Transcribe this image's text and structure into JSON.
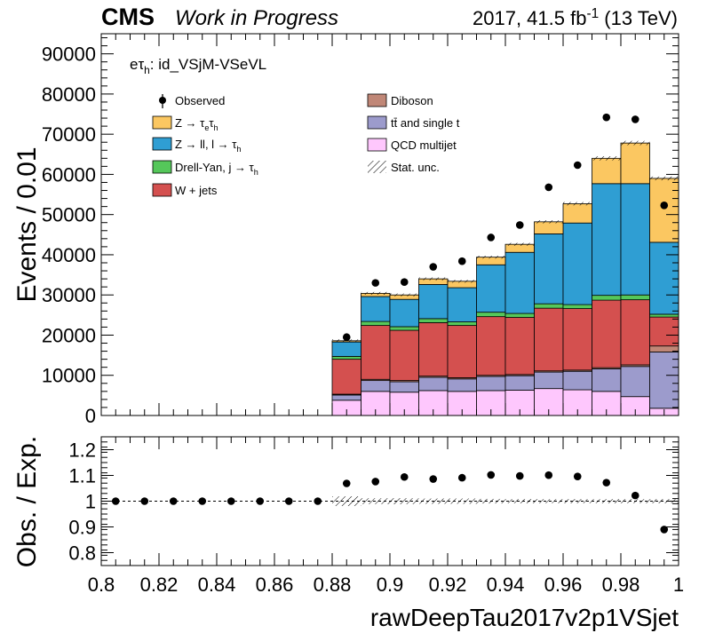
{
  "header": {
    "cms": "CMS",
    "status": "Work in Progress",
    "lumi": {
      "year": "2017, 41.5 fb",
      "sup": "-1",
      "energy": " (13 TeV)"
    }
  },
  "top_panel": {
    "ylabel": "Events / 0.01",
    "ylim": [
      0,
      95000
    ],
    "yticks": [
      0,
      10000,
      20000,
      30000,
      40000,
      50000,
      60000,
      70000,
      80000,
      90000
    ],
    "category": {
      "pre": "eτ",
      "sub": "h",
      "post": ": id_VSjM-VSeVL"
    }
  },
  "ratio_panel": {
    "ylabel": "Obs. / Exp.",
    "ylim": [
      0.75,
      1.25
    ],
    "yticks": [
      0.8,
      0.9,
      1,
      1.1,
      1.2
    ],
    "yticklabels": [
      "0.8",
      "0.9",
      "1",
      "1.1",
      "1.2"
    ]
  },
  "xaxis": {
    "label": "rawDeepTau2017v2p1VSjet",
    "xlim": [
      0.8,
      1.0
    ],
    "ticks": [
      0.8,
      0.82,
      0.84,
      0.86,
      0.88,
      0.9,
      0.92,
      0.94,
      0.96,
      0.98,
      1.0
    ],
    "ticklabels": [
      "0.8",
      "0.82",
      "0.84",
      "0.86",
      "0.88",
      "0.9",
      "0.92",
      "0.94",
      "0.96",
      "0.98",
      "1"
    ]
  },
  "legend": {
    "col1": [
      {
        "key": "observed",
        "label": "Observed"
      },
      {
        "key": "ztt",
        "label": "Z → τ",
        "sub1": "e",
        "mid": "τ",
        "sub2": "h"
      },
      {
        "key": "zll",
        "label": "Z → ll, l → τ",
        "sub1": "h"
      },
      {
        "key": "dy_jet",
        "label": "Drell-Yan, j → τ",
        "sub1": "h"
      },
      {
        "key": "wjets",
        "label": "W + jets"
      }
    ],
    "col2": [
      {
        "key": "diboson",
        "label": "Diboson"
      },
      {
        "key": "ttbar",
        "label": "tt̄ and single t"
      },
      {
        "key": "qcd",
        "label": "QCD multijet"
      },
      {
        "key": "stat",
        "label": "Stat. unc."
      }
    ]
  },
  "colors": {
    "ztt": "#fbc761",
    "zll": "#2f9ed3",
    "dy_jet": "#55c75a",
    "wjets": "#d4504f",
    "diboson": "#c08777",
    "ttbar": "#9c9bcc",
    "qcd": "#fec7fd"
  },
  "chart_data": {
    "type": "bar",
    "stacked": true,
    "x_bin_edges": [
      0.8,
      0.81,
      0.82,
      0.83,
      0.84,
      0.85,
      0.86,
      0.87,
      0.88,
      0.89,
      0.9,
      0.91,
      0.92,
      0.93,
      0.94,
      0.95,
      0.96,
      0.97,
      0.98,
      0.99,
      1.0
    ],
    "stack_order": [
      "qcd",
      "ttbar",
      "diboson",
      "wjets",
      "dy_jet",
      "zll",
      "ztt"
    ],
    "series": [
      {
        "name": "QCD multijet",
        "key": "qcd",
        "values": [
          0,
          0,
          0,
          0,
          0,
          0,
          0,
          0,
          3800,
          6000,
          5800,
          6200,
          6000,
          6200,
          6300,
          6700,
          6400,
          6000,
          4700,
          1800
        ]
      },
      {
        "name": "tt̄ and single t",
        "key": "ttbar",
        "values": [
          0,
          0,
          0,
          0,
          0,
          0,
          0,
          0,
          1300,
          2700,
          2600,
          3300,
          3100,
          3500,
          3600,
          4100,
          4600,
          5600,
          7500,
          14000
        ]
      },
      {
        "name": "Diboson",
        "key": "diboson",
        "values": [
          0,
          0,
          0,
          0,
          0,
          0,
          0,
          0,
          200,
          300,
          300,
          300,
          300,
          300,
          300,
          300,
          300,
          300,
          400,
          1500
        ]
      },
      {
        "name": "W + jets",
        "key": "wjets",
        "values": [
          0,
          0,
          0,
          0,
          0,
          0,
          0,
          0,
          8700,
          13400,
          12500,
          13300,
          13000,
          14600,
          14200,
          15600,
          15300,
          16800,
          16200,
          7200
        ]
      },
      {
        "name": "Drell-Yan, j → τh",
        "key": "dy_jet",
        "values": [
          0,
          0,
          0,
          0,
          0,
          0,
          0,
          0,
          700,
          1000,
          900,
          1000,
          900,
          1100,
          1000,
          1100,
          1000,
          1200,
          1200,
          700
        ]
      },
      {
        "name": "Z → ll, l → τh",
        "key": "zll",
        "values": [
          0,
          0,
          0,
          0,
          0,
          0,
          0,
          0,
          3600,
          6200,
          6800,
          8500,
          8500,
          11800,
          15200,
          17400,
          20300,
          27800,
          27700,
          17900
        ]
      },
      {
        "name": "Z → τeτh",
        "key": "ztt",
        "values": [
          0,
          0,
          0,
          0,
          0,
          0,
          0,
          0,
          300,
          800,
          1100,
          1400,
          1600,
          1900,
          2000,
          3000,
          4800,
          6300,
          10100,
          15900
        ]
      }
    ],
    "observed": {
      "x": [
        0.805,
        0.815,
        0.825,
        0.835,
        0.845,
        0.855,
        0.865,
        0.875,
        0.885,
        0.895,
        0.905,
        0.915,
        0.925,
        0.935,
        0.945,
        0.955,
        0.965,
        0.975,
        0.985,
        0.995
      ],
      "y": [
        0,
        0,
        0,
        0,
        0,
        0,
        0,
        0,
        19500,
        33000,
        33200,
        37000,
        38400,
        44300,
        47400,
        56800,
        62300,
        74200,
        73700,
        52300
      ]
    },
    "ratio": {
      "x": [
        0.805,
        0.815,
        0.825,
        0.835,
        0.845,
        0.855,
        0.865,
        0.875,
        0.885,
        0.895,
        0.905,
        0.915,
        0.925,
        0.935,
        0.945,
        0.955,
        0.965,
        0.975,
        0.985,
        0.995
      ],
      "y": [
        1,
        1,
        1,
        1,
        1,
        1,
        1,
        1,
        1.069,
        1.076,
        1.094,
        1.086,
        1.091,
        1.102,
        1.098,
        1.101,
        1.096,
        1.072,
        1.022,
        0.89
      ]
    },
    "ylabel": "Events / 0.01",
    "xlabel": "rawDeepTau2017v2p1VSjet",
    "ylim": [
      0,
      95000
    ],
    "xlim": [
      0.8,
      1.0
    ]
  }
}
